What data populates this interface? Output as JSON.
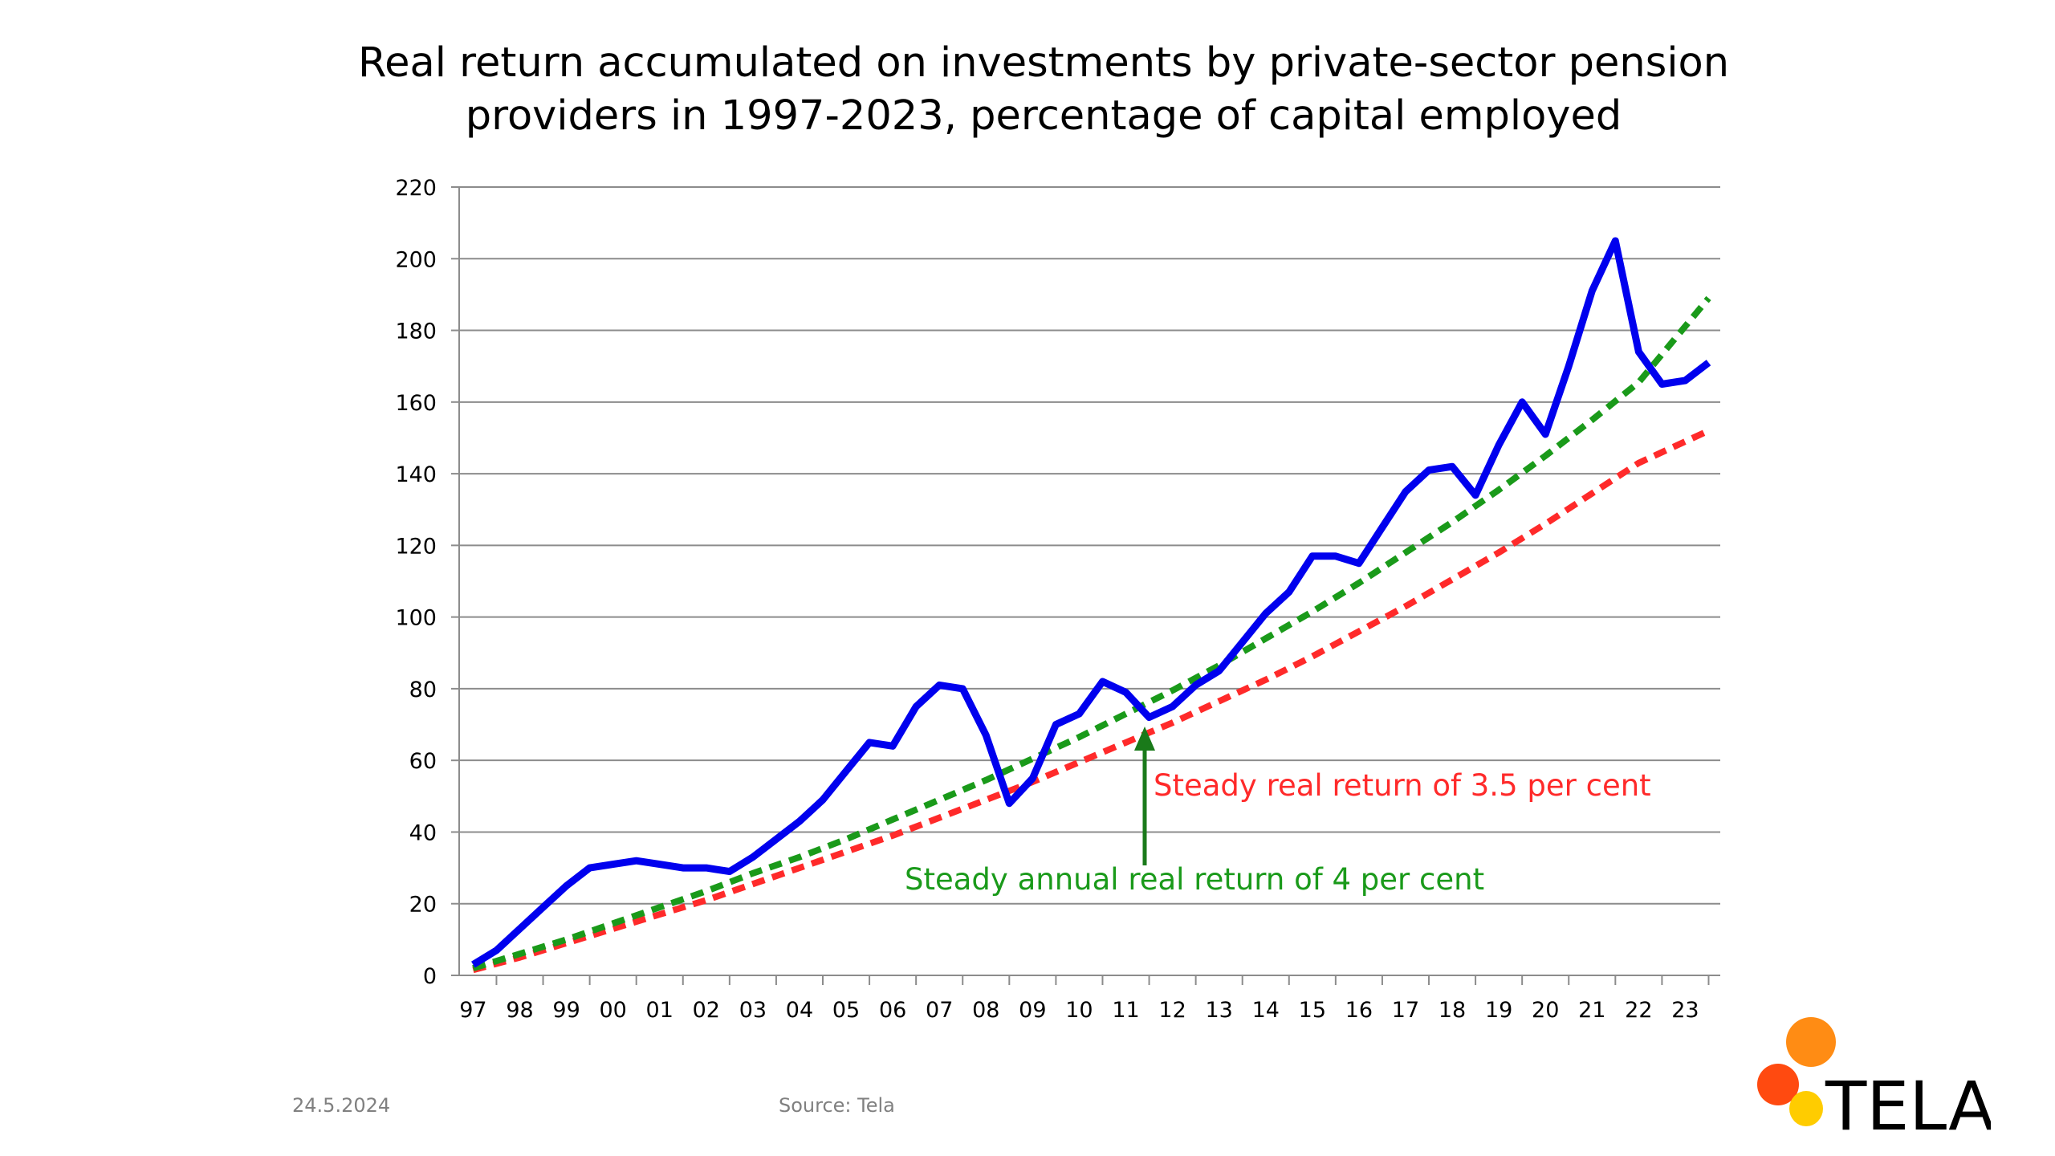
{
  "title": {
    "line1": "Real return accumulated on investments by private-sector pension",
    "line2": "providers in 1997-2023, percentage of capital employed"
  },
  "footer": {
    "date": "24.5.2024",
    "source": "Source: Tela"
  },
  "logo": {
    "text": "TELA"
  },
  "chart_data": {
    "type": "line",
    "ylim": [
      0,
      220
    ],
    "yticks": [
      0,
      20,
      40,
      60,
      80,
      100,
      120,
      140,
      160,
      180,
      200,
      220
    ],
    "xlim": [
      1996.7,
      2023.75
    ],
    "categories": [
      "97",
      "98",
      "99",
      "00",
      "01",
      "02",
      "03",
      "04",
      "05",
      "06",
      "07",
      "08",
      "09",
      "10",
      "11",
      "12",
      "13",
      "14",
      "15",
      "16",
      "17",
      "18",
      "19",
      "20",
      "21",
      "22",
      "23"
    ],
    "grid": true,
    "legend": "none",
    "series": [
      {
        "color": "#0000ee",
        "x": [
          1997.0,
          1997.5,
          1998.0,
          1998.5,
          1999.0,
          1999.5,
          2000.0,
          2000.5,
          2001.0,
          2001.5,
          2002.0,
          2002.5,
          2003.0,
          2003.5,
          2004.0,
          2004.5,
          2005.0,
          2005.5,
          2006.0,
          2006.5,
          2007.0,
          2007.5,
          2008.0,
          2008.5,
          2009.0,
          2009.5,
          2010.0,
          2010.5,
          2011.0,
          2011.5,
          2012.0,
          2012.5,
          2013.0,
          2013.5,
          2014.0,
          2014.5,
          2015.0,
          2015.5,
          2016.0,
          2016.5,
          2017.0,
          2017.5,
          2018.0,
          2018.5,
          2019.0,
          2019.5,
          2020.0,
          2020.5,
          2021.0,
          2021.5,
          2022.0,
          2022.5,
          2023.0,
          2023.5
        ],
        "values": [
          3,
          7,
          13,
          19,
          25,
          30,
          31,
          32,
          31,
          30,
          30,
          29,
          33,
          38,
          43,
          49,
          57,
          65,
          64,
          75,
          81,
          80,
          67,
          48,
          55,
          70,
          73,
          82,
          79,
          72,
          75,
          81,
          85,
          93,
          101,
          107,
          117,
          117,
          115,
          125,
          135,
          141,
          142,
          134,
          148,
          160,
          151,
          170,
          191,
          205,
          174,
          165,
          166,
          171
        ]
      },
      {
        "name": "Steady annual real return of 4 per cent",
        "color": "#1a9a1a",
        "dashed": true,
        "x": [
          1997,
          1998,
          1999,
          2000,
          2001,
          2002,
          2003,
          2004,
          2005,
          2006,
          2007,
          2008,
          2009,
          2010,
          2011,
          2012,
          2013,
          2014,
          2015,
          2016,
          2017,
          2018,
          2019,
          2020,
          2021,
          2022,
          2023.5
        ],
        "values": [
          2,
          6,
          10,
          14.5,
          19,
          23.5,
          28.5,
          33,
          38,
          43.5,
          49,
          54.5,
          60.5,
          66.5,
          73,
          79.5,
          86.5,
          94,
          101.5,
          109.5,
          118,
          126.5,
          135.5,
          145,
          155,
          165.5,
          189
        ]
      },
      {
        "name": "Steady real return of 3.5 per cent",
        "color": "#ff2a2a",
        "dashed": true,
        "x": [
          1997,
          1998,
          1999,
          2000,
          2001,
          2002,
          2003,
          2004,
          2005,
          2006,
          2007,
          2008,
          2009,
          2010,
          2011,
          2012,
          2013,
          2014,
          2015,
          2016,
          2017,
          2018,
          2019,
          2020,
          2021,
          2022,
          2023.5
        ],
        "values": [
          1.5,
          5,
          9,
          13,
          17,
          21,
          25.5,
          30,
          34.5,
          39,
          44,
          49,
          54,
          59.5,
          65,
          70.5,
          76.5,
          82.5,
          89,
          96,
          103,
          110.5,
          118,
          126,
          134.5,
          143,
          152
        ]
      }
    ],
    "annotations": [
      {
        "text": "Steady real return of 3.5 per cent",
        "color": "#ff2a2a"
      },
      {
        "text": "Steady annual real return of 4 per cent",
        "color": "#1a9a1a"
      }
    ]
  }
}
